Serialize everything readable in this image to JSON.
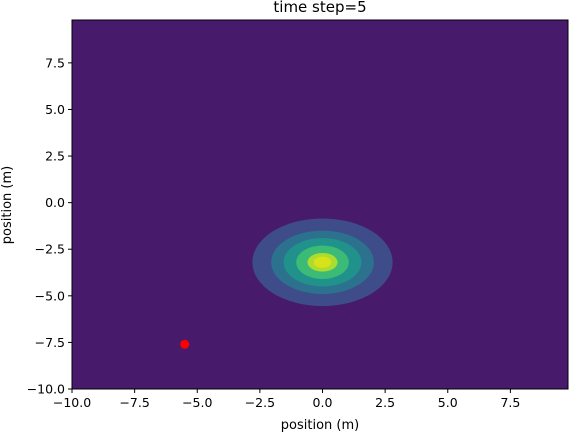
{
  "chart_data": {
    "type": "contour",
    "title": "time step=5",
    "xlabel": "position (m)",
    "ylabel": "position (m)",
    "xlim": [
      -10.0,
      9.8
    ],
    "ylim": [
      -10.0,
      9.8
    ],
    "x_ticks": [
      -10.0,
      -7.5,
      -5.0,
      -2.5,
      0.0,
      2.5,
      5.0,
      7.5
    ],
    "x_tick_labels": [
      "−10.0",
      "−7.5",
      "−5.0",
      "−2.5",
      "0.0",
      "2.5",
      "5.0",
      "7.5"
    ],
    "y_ticks": [
      -10.0,
      -7.5,
      -5.0,
      -2.5,
      0.0,
      2.5,
      5.0,
      7.5
    ],
    "y_tick_labels": [
      "−10.0",
      "−7.5",
      "−5.0",
      "−2.5",
      "0.0",
      "2.5",
      "5.0",
      "7.5"
    ],
    "grid": false,
    "colormap": "viridis",
    "background_color": "#481a6c",
    "contour_center": [
      0.0,
      -3.2
    ],
    "contour_levels": [
      {
        "rx": 2.8,
        "ry": 2.35,
        "color": "#3e4c8a"
      },
      {
        "rx": 2.05,
        "ry": 1.7,
        "color": "#2c728e"
      },
      {
        "rx": 1.55,
        "ry": 1.3,
        "color": "#21918c"
      },
      {
        "rx": 1.05,
        "ry": 0.9,
        "color": "#3bbb75"
      },
      {
        "rx": 0.6,
        "ry": 0.5,
        "color": "#aadc32"
      },
      {
        "rx": 0.35,
        "ry": 0.3,
        "color": "#d8e219"
      }
    ],
    "marker": {
      "x": -5.5,
      "y": -7.6,
      "color": "#ff0000"
    }
  }
}
